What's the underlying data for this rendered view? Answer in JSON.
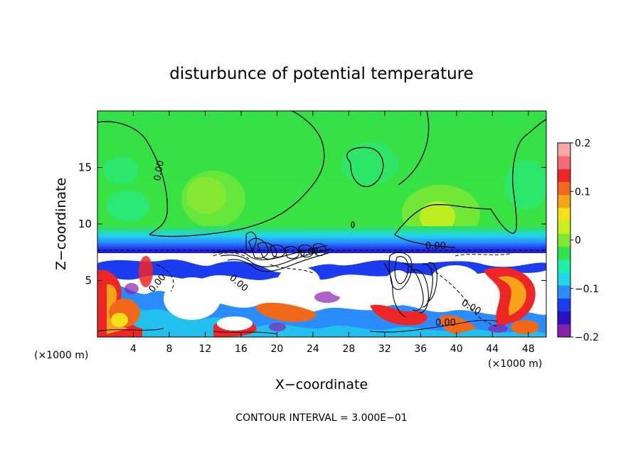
{
  "chart_data": {
    "type": "heatmap",
    "title": "disturbunce of potential temperature",
    "xlabel": "X−coordinate",
    "ylabel": "Z−coordinate",
    "x_unit": "(×1000 m)",
    "z_unit": "(×1000 m)",
    "x_ticks": [
      "4",
      "8",
      "12",
      "16",
      "20",
      "24",
      "28",
      "32",
      "36",
      "40",
      "44",
      "48"
    ],
    "x_tick_values": [
      4,
      8,
      12,
      16,
      20,
      24,
      28,
      32,
      36,
      40,
      44,
      48
    ],
    "z_ticks": [
      "5",
      "10",
      "15"
    ],
    "z_tick_values": [
      5,
      10,
      15
    ],
    "xlim": [
      0,
      50
    ],
    "ylim": [
      0,
      20
    ],
    "colorbar": {
      "ticks": [
        "0.2",
        "0.1",
        "0",
        "−0.1",
        "−0.2"
      ],
      "tick_values": [
        0.2,
        0.1,
        0,
        -0.1,
        -0.2
      ],
      "range": [
        -0.2,
        0.2
      ],
      "colors": [
        "#8a1fb0",
        "#2a12c4",
        "#1c3cf0",
        "#2a8cff",
        "#1fd6e8",
        "#1ef0a8",
        "#34e04c",
        "#7ee832",
        "#c8ee1e",
        "#f4e01a",
        "#f5a41a",
        "#f0681a",
        "#ee2626",
        "#f56a76",
        "#f8a6a6"
      ]
    },
    "contour_labels": [
      "0.00",
      "0.00",
      "0.00",
      "0.00",
      "0.00",
      "0.00",
      "0.00"
    ],
    "contour_interval_text": "CONTOUR INTERVAL = 3.000E−01"
  }
}
